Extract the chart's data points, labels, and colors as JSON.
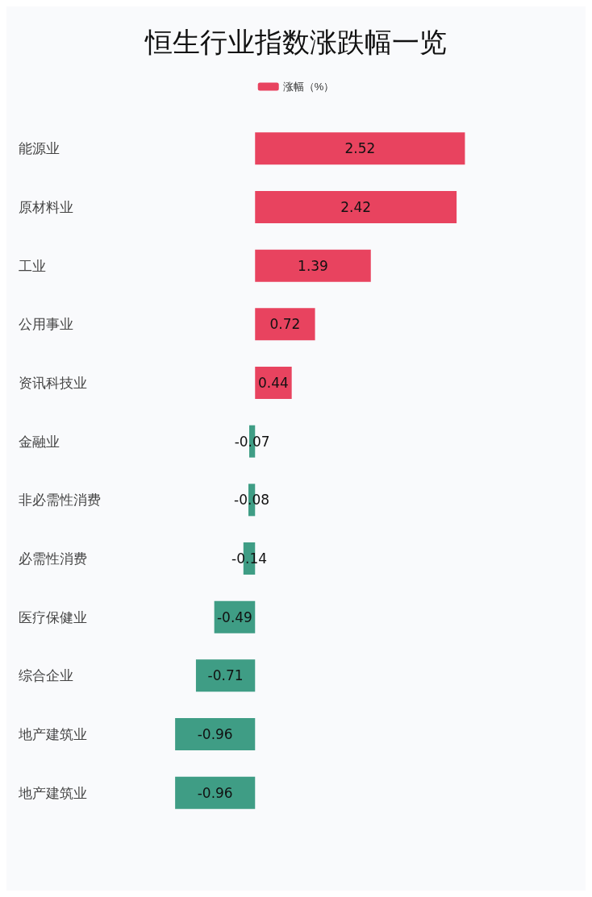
{
  "chart_data": {
    "type": "bar",
    "orientation": "horizontal",
    "title": "恒生行业指数涨跌幅一览",
    "categories": [
      "能源业",
      "原材料业",
      "工业",
      "公用事业",
      "资讯科技业",
      "金融业",
      "非必需性消费",
      "必需性消费",
      "医疗保健业",
      "综合企业",
      "地产建筑业",
      "地产建筑业"
    ],
    "series": [
      {
        "name": "涨幅（%）",
        "color": "#e8435f",
        "values": [
          2.52,
          2.42,
          1.39,
          0.72,
          0.44,
          -0.07,
          -0.08,
          -0.14,
          -0.49,
          -0.71,
          -0.96,
          -0.96
        ],
        "colors": [
          "#e8435f",
          "#e8435f",
          "#e8435f",
          "#e8435f",
          "#e8435f",
          "#3f9d85",
          "#3f9d85",
          "#3f9d85",
          "#3f9d85",
          "#3f9d85",
          "#3f9d85",
          "#3f9d85"
        ]
      }
    ],
    "data_labels": true,
    "grid": false,
    "legend": "top",
    "tick_labels": "y"
  }
}
